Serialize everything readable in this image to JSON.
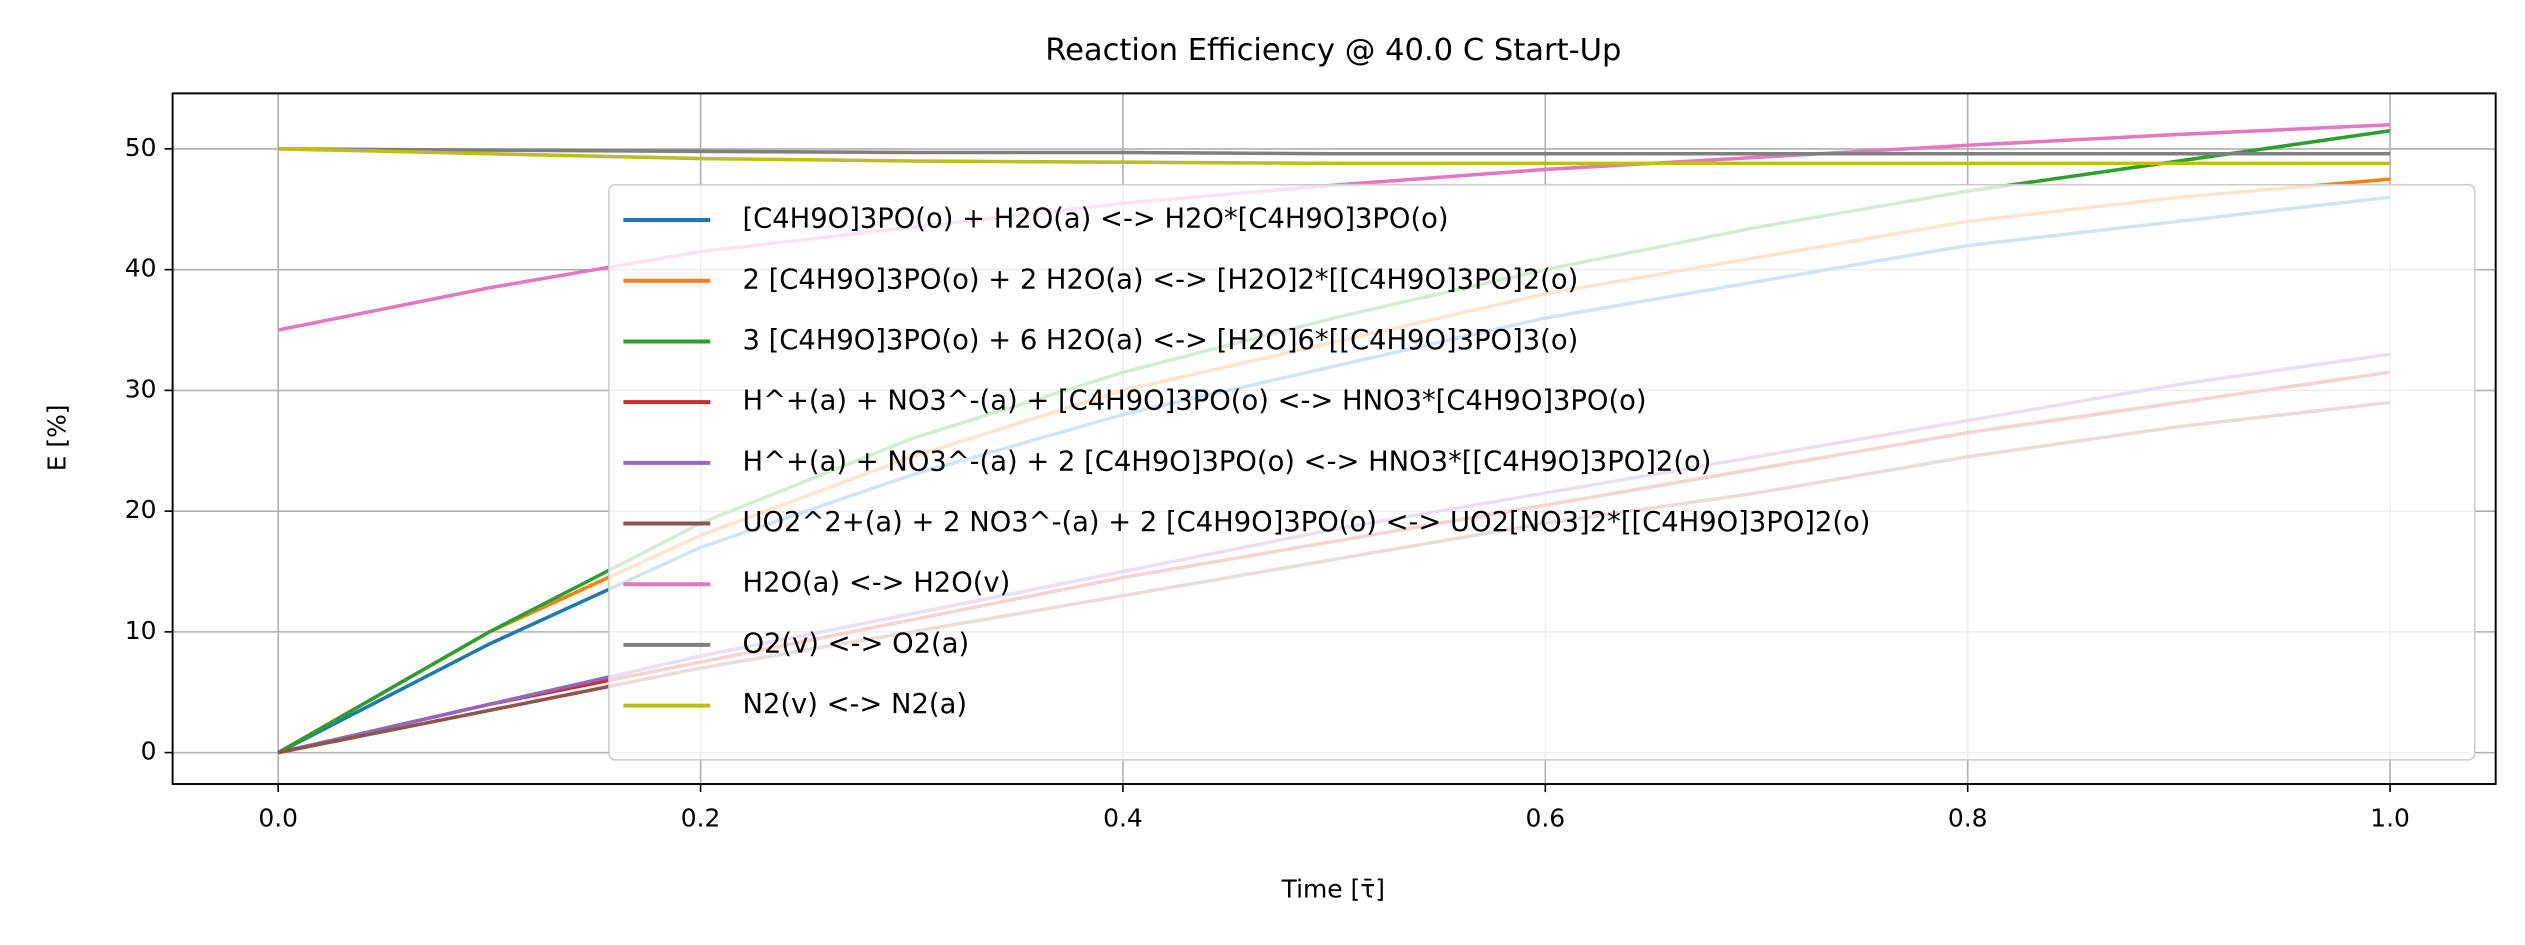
{
  "chart_data": {
    "type": "line",
    "title": "Reaction Efficiency @ 40.0 C Start-Up",
    "x_label": "Time [τ̄]",
    "y_label": "E [%]",
    "x": [
      0,
      0.1,
      0.2,
      0.3,
      0.4,
      0.5,
      0.6,
      0.7,
      0.8,
      0.9,
      1.0
    ],
    "xlim": [
      -0.05,
      1.05
    ],
    "xticks": [
      {
        "value": 0,
        "label": "0.0"
      },
      0.2,
      0.4,
      0.6,
      0.8,
      {
        "value": 1,
        "label": "1.0"
      }
    ],
    "ylim": [
      -2.6,
      54.6
    ],
    "yticks": [
      0,
      10,
      20,
      30,
      40,
      50
    ],
    "grid": true,
    "legend_loc": "lower right",
    "series": [
      {
        "name": "[C4H9O]3PO(o) + H2O(a) <-> H2O*[C4H9O]3PO(o)",
        "color": "#1f77b4",
        "values": [
          0,
          9,
          17,
          23,
          28,
          32,
          36,
          39,
          42,
          44,
          46
        ]
      },
      {
        "name": "2 [C4H9O]3PO(o) + 2 H2O(a) <-> [H2O]2*[[C4H9O]3PO]2(o)",
        "color": "#ff7f0e",
        "values": [
          0,
          10,
          18,
          24.5,
          30,
          34,
          38,
          41,
          44,
          46,
          47.5
        ]
      },
      {
        "name": "3 [C4H9O]3PO(o) + 6 H2O(a) <-> [H2O]6*[[C4H9O]3PO]3(o)",
        "color": "#2ca02c",
        "values": [
          0,
          10,
          19,
          26,
          31.5,
          36,
          40,
          43.5,
          46.5,
          49,
          51.5
        ]
      },
      {
        "name": "H^+(a) + NO3^-(a) + [C4H9O]3PO(o) <-> HNO3*[C4H9O]3PO(o)",
        "color": "#d62728",
        "values": [
          0,
          4,
          7.5,
          11,
          14.5,
          17.5,
          20.5,
          23.5,
          26.5,
          29,
          31.5
        ]
      },
      {
        "name": "H^+(a) + NO3^-(a) + 2 [C4H9O]3PO(o) <-> HNO3*[[C4H9O]3PO]2(o)",
        "color": "#9467bd",
        "values": [
          0,
          4,
          8,
          11.5,
          15,
          18.5,
          21.5,
          24.5,
          27.5,
          30.5,
          33
        ]
      },
      {
        "name": "UO2^2+(a) + 2 NO3^-(a) + 2 [C4H9O]3PO(o) <-> UO2[NO3]2*[[C4H9O]3PO]2(o)",
        "color": "#8c564b",
        "values": [
          0,
          3.5,
          7,
          10,
          13,
          16,
          19,
          21.5,
          24.5,
          27,
          29
        ]
      },
      {
        "name": "H2O(a) <-> H2O(v)",
        "color": "#e377c2",
        "values": [
          35,
          38.5,
          41.5,
          43.5,
          45.5,
          47,
          48.3,
          49.3,
          50.3,
          51.2,
          52
        ]
      },
      {
        "name": "O2(v) <-> O2(a)",
        "color": "#7f7f7f",
        "values": [
          50,
          49.9,
          49.8,
          49.7,
          49.7,
          49.6,
          49.6,
          49.6,
          49.6,
          49.6,
          49.6
        ]
      },
      {
        "name": "N2(v) <-> N2(a)",
        "color": "#bcbd22",
        "values": [
          50,
          49.6,
          49.2,
          49.0,
          48.9,
          48.8,
          48.8,
          48.8,
          48.8,
          48.8,
          48.8
        ]
      }
    ]
  }
}
